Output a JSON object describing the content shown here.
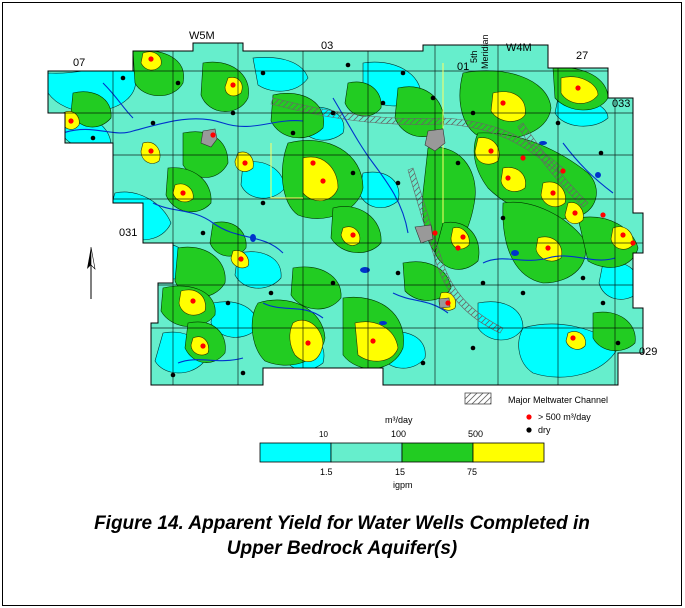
{
  "map": {
    "township_labels": {
      "w5m": "W5M",
      "range_03": "03",
      "range_07": "07",
      "range_01": "01",
      "meridian_line1": "5th",
      "meridian_line2": "Meridian",
      "w4m": "W4M",
      "range_27": "27",
      "twp_033": "033",
      "twp_031": "031",
      "twp_029": "029"
    },
    "colors": {
      "yield_lt_10": "#00ffff",
      "yield_10_100": "#66eecc",
      "yield_100_500": "#22cc22",
      "yield_gt_500": "#ffff00",
      "high_yield_well": "#ff0000",
      "dry_well": "#000000",
      "drainage": "#0033cc",
      "meltwater_channel": "#999999",
      "urban": "#999999",
      "boundary": "#ffff66"
    }
  },
  "legend": {
    "meltwater_label": "Major Meltwater Channel",
    "high_yield_label": "> 500 m³/day",
    "dry_label": "dry",
    "unit_top": "m³/day",
    "unit_bottom": "igpm",
    "top_ticks": [
      "10",
      "100",
      "500"
    ],
    "bottom_ticks": [
      "1.5",
      "15",
      "75"
    ]
  },
  "caption": {
    "line1": "Figure 14. Apparent Yield for Water Wells Completed in",
    "line2": "Upper Bedrock Aquifer(s)"
  }
}
